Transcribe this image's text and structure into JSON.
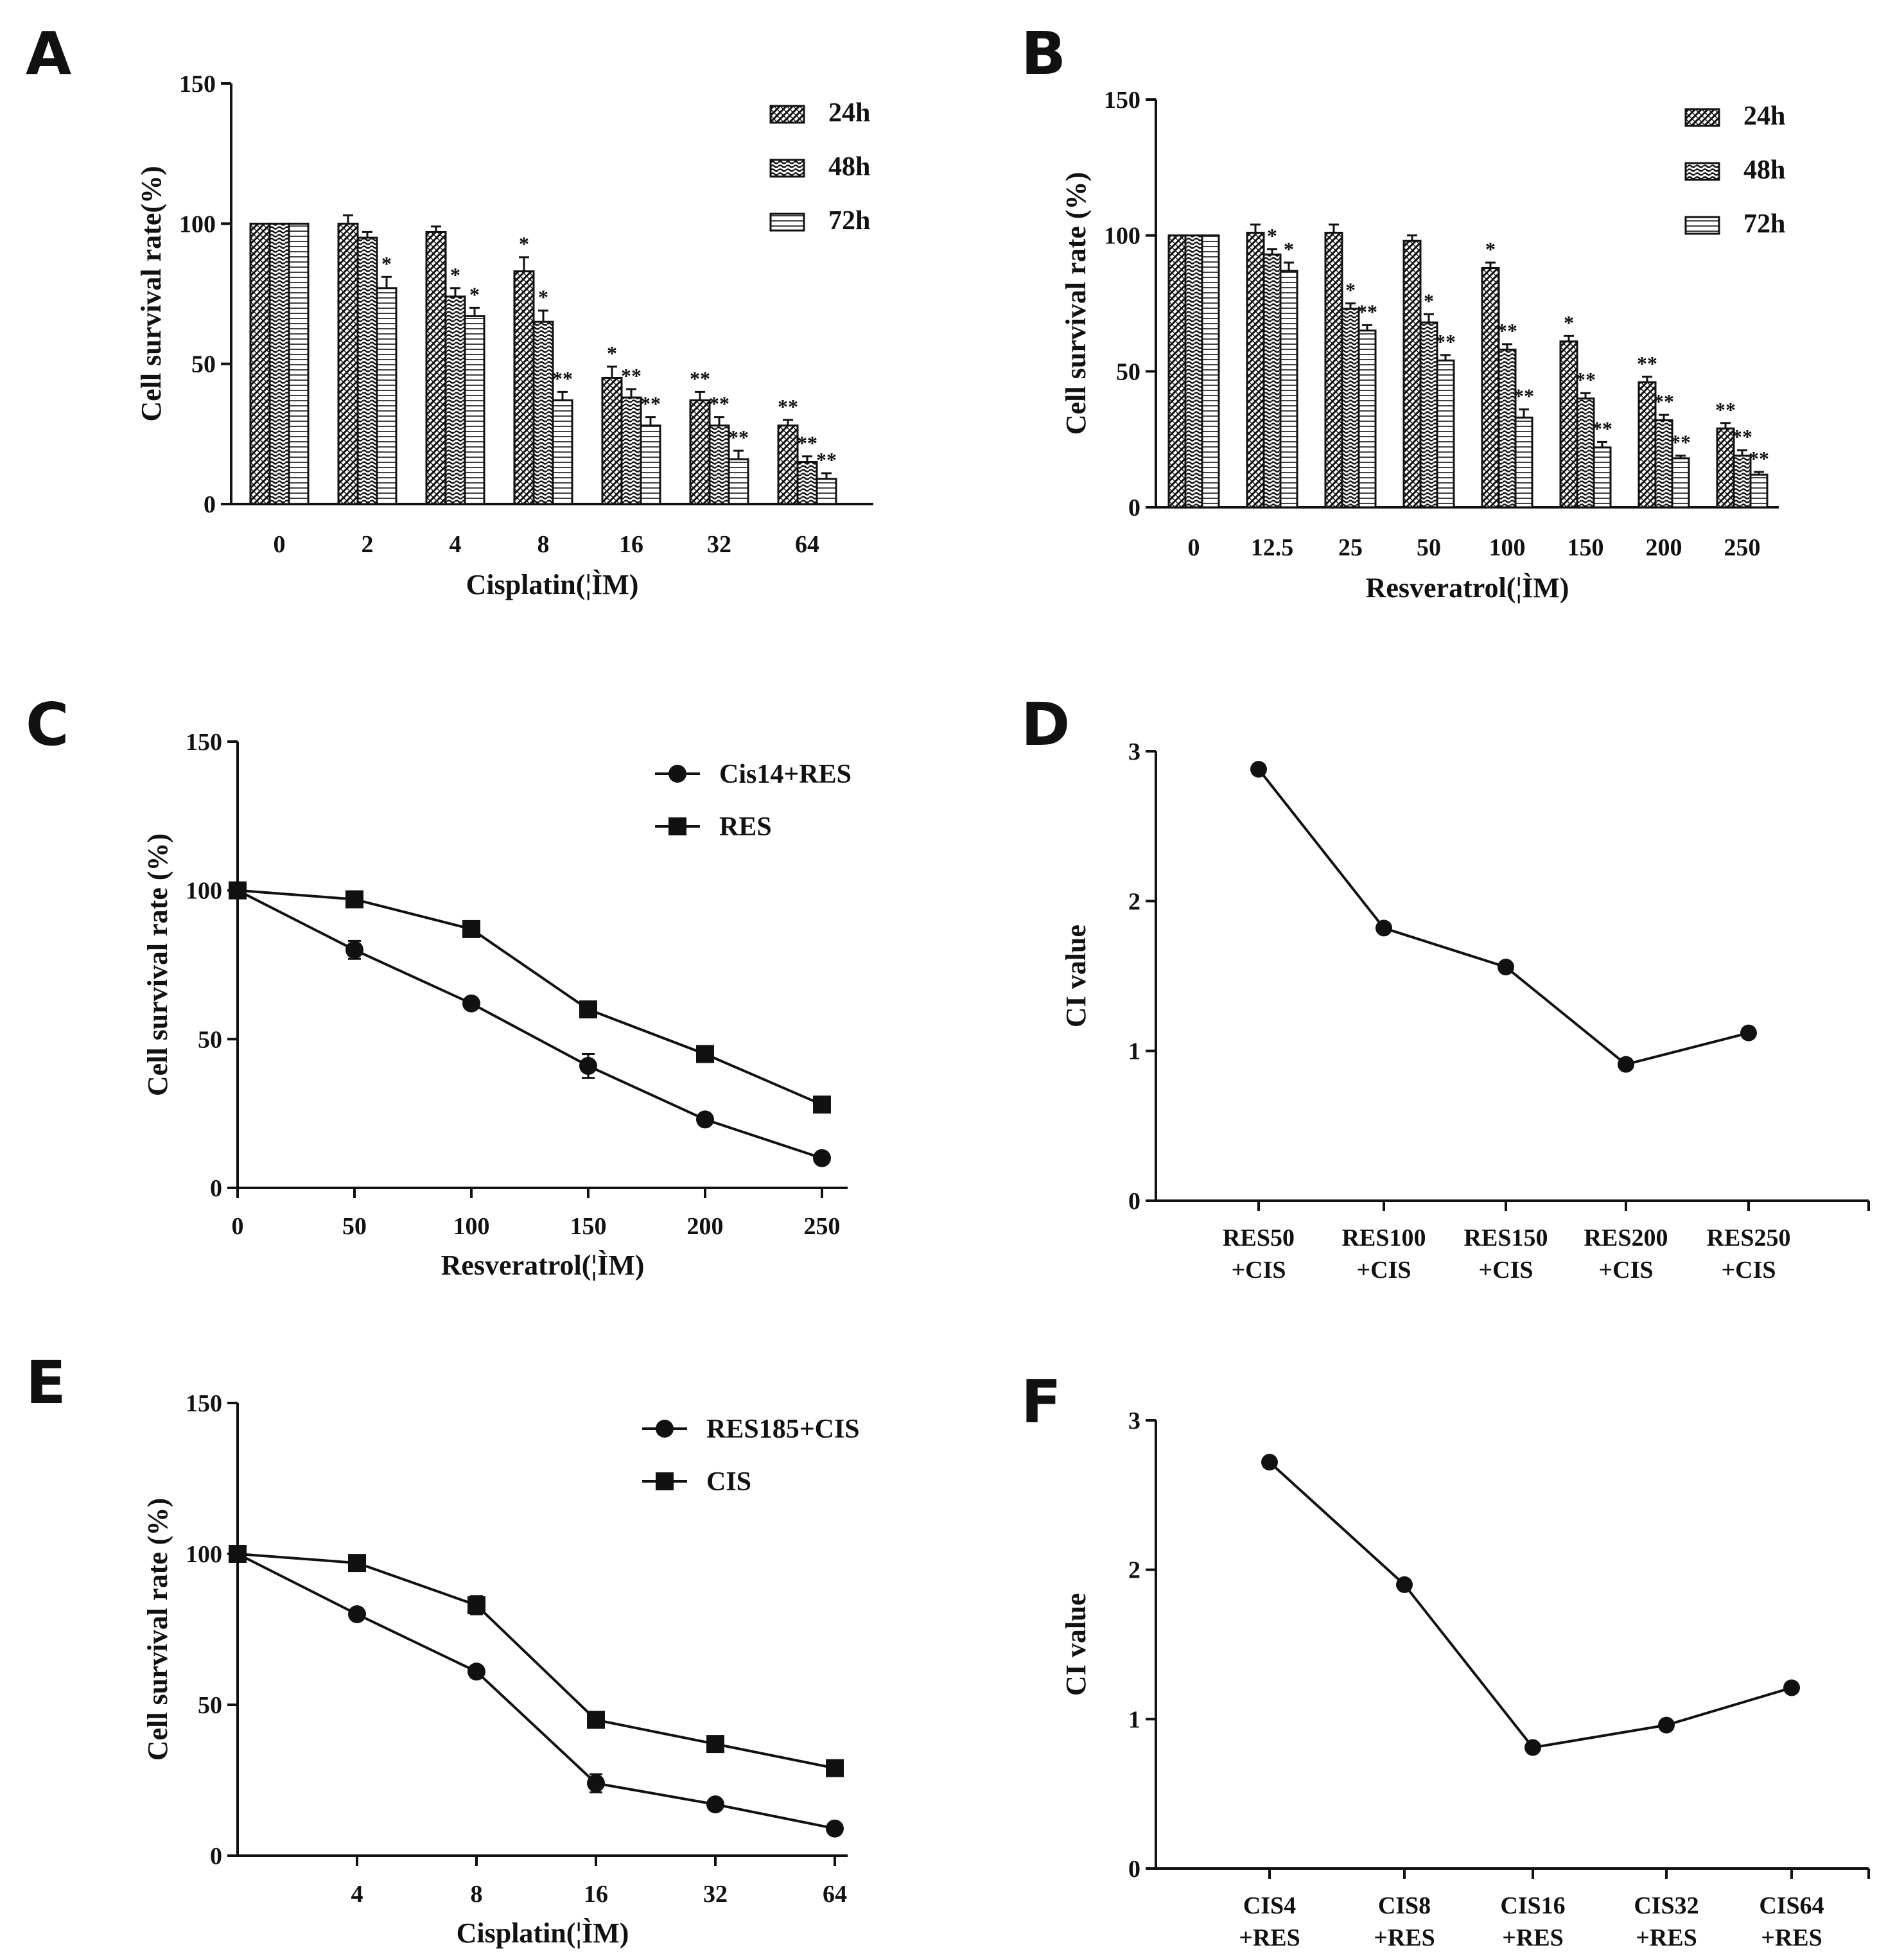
{
  "chart_data": [
    {
      "id": "A",
      "type": "bar",
      "panel_label": "A",
      "xlabel": "Cisplatin(¦ÌM)",
      "ylabel": "Cell survival rate(%)",
      "ylim": [
        0,
        150
      ],
      "yticks": [
        0,
        50,
        100,
        150
      ],
      "categories": [
        "0",
        "2",
        "4",
        "8",
        "16",
        "32",
        "64"
      ],
      "series": [
        {
          "name": "24h",
          "pattern": "24h",
          "values": [
            100,
            100,
            97,
            83,
            45,
            37,
            28
          ],
          "errors": [
            0,
            3,
            2,
            5,
            4,
            3,
            2
          ],
          "sig": [
            "",
            "",
            "",
            "*",
            "*",
            "**",
            "**"
          ]
        },
        {
          "name": "48h",
          "pattern": "48h",
          "values": [
            100,
            95,
            74,
            65,
            38,
            28,
            15
          ],
          "errors": [
            0,
            2,
            3,
            4,
            3,
            3,
            2
          ],
          "sig": [
            "",
            "",
            "*",
            "*",
            "**",
            "**",
            "**"
          ]
        },
        {
          "name": "72h",
          "pattern": "72h",
          "values": [
            100,
            77,
            67,
            37,
            28,
            16,
            9
          ],
          "errors": [
            0,
            4,
            3,
            3,
            3,
            3,
            2
          ],
          "sig": [
            "",
            "*",
            "*",
            "**",
            "**",
            "**",
            "**"
          ]
        }
      ]
    },
    {
      "id": "B",
      "type": "bar",
      "panel_label": "B",
      "xlabel": "Resveratrol(¦ÌM)",
      "ylabel": "Cell survival rate (%)",
      "ylim": [
        0,
        150
      ],
      "yticks": [
        0,
        50,
        100,
        150
      ],
      "categories": [
        "0",
        "12.5",
        "25",
        "50",
        "100",
        "150",
        "200",
        "250"
      ],
      "series": [
        {
          "name": "24h",
          "pattern": "24h",
          "values": [
            100,
            101,
            101,
            98,
            88,
            61,
            46,
            29
          ],
          "errors": [
            0,
            3,
            3,
            2,
            2,
            2,
            2,
            2
          ],
          "sig": [
            "",
            "",
            "",
            "",
            "*",
            "*",
            "**",
            "**"
          ]
        },
        {
          "name": "48h",
          "pattern": "48h",
          "values": [
            100,
            93,
            73,
            68,
            58,
            40,
            32,
            19
          ],
          "errors": [
            0,
            2,
            2,
            3,
            2,
            2,
            2,
            2
          ],
          "sig": [
            "",
            "*",
            "*",
            "*",
            "**",
            "**",
            "**",
            "**"
          ]
        },
        {
          "name": "72h",
          "pattern": "72h",
          "values": [
            100,
            87,
            65,
            54,
            33,
            22,
            18,
            12
          ],
          "errors": [
            0,
            3,
            2,
            2,
            3,
            2,
            1,
            1
          ],
          "sig": [
            "",
            "*",
            "**",
            "**",
            "**",
            "**",
            "**",
            "**"
          ]
        }
      ]
    },
    {
      "id": "C",
      "type": "line",
      "panel_label": "C",
      "xlabel": "Resveratrol(¦ÌM)",
      "ylabel": "Cell survival rate (%)",
      "ylim": [
        0,
        150
      ],
      "yticks": [
        0,
        50,
        100,
        150
      ],
      "xlim": [
        0,
        250
      ],
      "xticks": [
        "0",
        "50",
        "100",
        "150",
        "200",
        "250"
      ],
      "x": [
        0,
        50,
        100,
        150,
        200,
        250
      ],
      "series": [
        {
          "name": "Cis14+RES",
          "marker": "circle",
          "values": [
            100,
            80,
            62,
            41,
            23,
            10
          ],
          "errors": [
            0,
            3,
            1,
            4,
            1,
            1
          ]
        },
        {
          "name": "RES",
          "marker": "square",
          "values": [
            100,
            97,
            87,
            60,
            45,
            28
          ],
          "errors": [
            0,
            1,
            1,
            1,
            1,
            1
          ]
        }
      ]
    },
    {
      "id": "D",
      "type": "line",
      "panel_label": "D",
      "xlabel": "",
      "ylabel": "CI value",
      "ylim": [
        0,
        3
      ],
      "yticks": [
        0,
        1,
        2,
        3
      ],
      "categories": [
        [
          "RES50",
          "+CIS"
        ],
        [
          "RES100",
          "+CIS"
        ],
        [
          "RES150",
          "+CIS"
        ],
        [
          "RES200",
          "+CIS"
        ],
        [
          "RES250",
          "+CIS"
        ]
      ],
      "values": [
        2.88,
        1.82,
        1.56,
        0.91,
        1.12
      ]
    },
    {
      "id": "E",
      "type": "line",
      "panel_label": "E",
      "xlabel": "Cisplatin(¦ÌM)",
      "ylabel": "Cell survival rate (%)",
      "ylim": [
        0,
        150
      ],
      "yticks": [
        0,
        50,
        100,
        150
      ],
      "xticks": [
        "4",
        "8",
        "16",
        "32",
        "64"
      ],
      "x_positions_index": [
        0,
        1,
        2,
        3,
        4,
        5
      ],
      "series": [
        {
          "name": "RES185+CIS",
          "marker": "circle",
          "values": [
            100,
            80,
            61,
            24,
            17,
            9
          ],
          "errors": [
            0,
            1,
            1,
            3,
            1,
            1
          ]
        },
        {
          "name": "CIS",
          "marker": "square",
          "values": [
            100,
            97,
            83,
            45,
            37,
            29
          ],
          "errors": [
            0,
            1,
            3,
            1,
            1,
            1
          ]
        }
      ]
    },
    {
      "id": "F",
      "type": "line",
      "panel_label": "F",
      "xlabel": "",
      "ylabel": "CI value",
      "ylim": [
        0,
        3
      ],
      "yticks": [
        0,
        1,
        2,
        3
      ],
      "categories": [
        [
          "CIS4",
          "+RES"
        ],
        [
          "CIS8",
          "+RES"
        ],
        [
          "CIS16",
          "+RES"
        ],
        [
          "CIS32",
          "+RES"
        ],
        [
          "CIS64",
          "+RES"
        ]
      ],
      "values": [
        2.72,
        1.9,
        0.81,
        0.96,
        1.21
      ]
    }
  ]
}
